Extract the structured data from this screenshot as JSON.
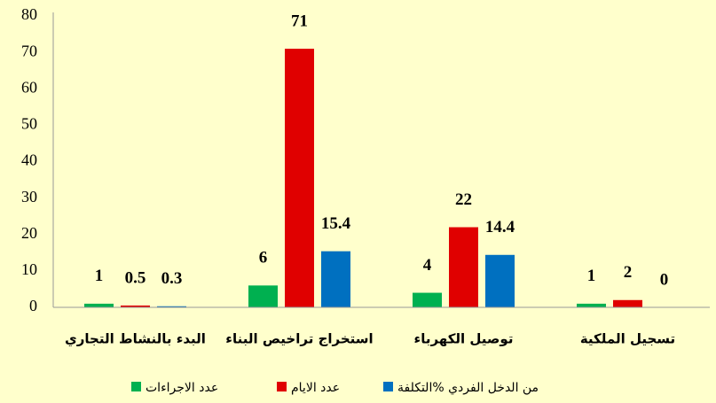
{
  "chart_data": {
    "type": "bar",
    "categories": [
      "البدء بالنشاط التجاري",
      "استخراج تراخيص البناء",
      "توصيل الكهرباء",
      "تسجيل الملكية"
    ],
    "series": [
      {
        "name": "عدد الاجراءات",
        "color": "#00b050",
        "values": [
          1,
          6,
          4,
          1
        ]
      },
      {
        "name": "عدد الايام",
        "color": "#e00000",
        "values": [
          0.5,
          71,
          22,
          2
        ]
      },
      {
        "name": "من الدخل الفردي %التكلفة",
        "color": "#0070c0",
        "values": [
          0.3,
          15.4,
          14.4,
          0
        ]
      }
    ],
    "ylim": [
      0,
      80
    ],
    "yticks": [
      0,
      10,
      20,
      30,
      40,
      50,
      60,
      70,
      80
    ],
    "grid": false,
    "legend": "bottom"
  }
}
